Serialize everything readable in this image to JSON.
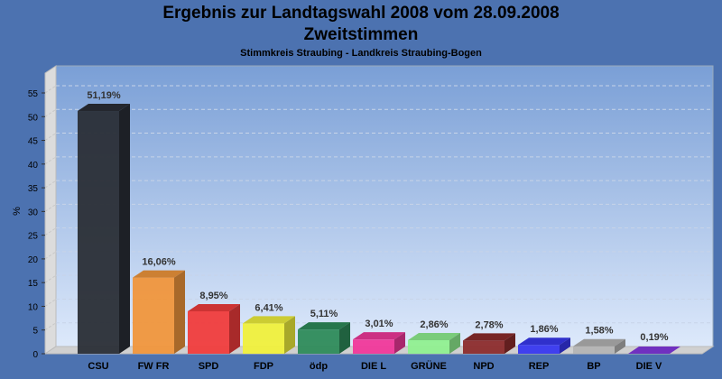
{
  "chart_data": {
    "type": "bar",
    "title": "Ergebnis zur Landtagswahl 2008 vom 28.09.2008",
    "subtitle": "Zweitstimmen",
    "caption": "Stimmkreis Straubing - Landkreis Straubing-Bogen",
    "xlabel": "",
    "ylabel": "%",
    "ylim": [
      0,
      55
    ],
    "yticks": [
      0,
      5,
      10,
      15,
      20,
      25,
      30,
      35,
      40,
      45,
      50,
      55
    ],
    "grid": true,
    "categories": [
      "CSU",
      "FW FR",
      "SPD",
      "FDP",
      "ödp",
      "DIE L",
      "GRÜNE",
      "NPD",
      "REP",
      "BP",
      "DIE V"
    ],
    "values": [
      51.19,
      16.06,
      8.95,
      6.41,
      5.11,
      3.01,
      2.86,
      2.78,
      1.86,
      1.58,
      0.19
    ],
    "labels": [
      "51,19%",
      "16,06%",
      "8,95%",
      "6,41%",
      "5,11%",
      "3,01%",
      "2,86%",
      "2,78%",
      "1,86%",
      "1,58%",
      "0,19%"
    ],
    "colors": [
      "#2a2e36",
      "#f0963c",
      "#f03c3c",
      "#f0f03c",
      "#2e8b5a",
      "#f0389a",
      "#90f090",
      "#8c2c2c",
      "#3838f0",
      "#b4b4b4",
      "#7030c0"
    ]
  }
}
